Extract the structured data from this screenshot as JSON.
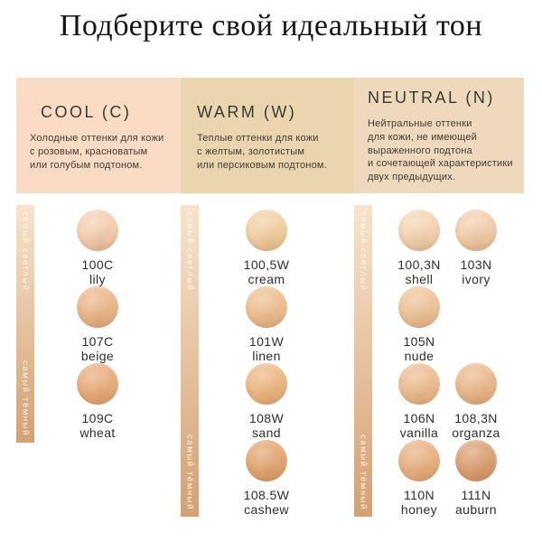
{
  "title": "Подберите свой идеальный тон",
  "scale": {
    "lightest_label": "самый светлый",
    "darkest_label": "самый тёмный",
    "gradient_top": "#f8e3cb",
    "gradient_bottom": "#d5a072"
  },
  "columns": [
    {
      "id": "cool",
      "title": "COOL (C)",
      "header_bg": "#f9dcc3",
      "description_lines": [
        "Холодные оттенки для кожи",
        "с розовым, красноватым",
        "или голубым подтоном."
      ],
      "swatches": [
        {
          "code": "100C",
          "name": "lily",
          "color": "#f4d0b2",
          "row": 0,
          "col": 0
        },
        {
          "code": "107C",
          "name": "beige",
          "color": "#ebb88c",
          "row": 1,
          "col": 0
        },
        {
          "code": "109C",
          "name": "wheat",
          "color": "#e9ae7e",
          "row": 2,
          "col": 0
        }
      ]
    },
    {
      "id": "warm",
      "title": "WARM (W)",
      "header_bg": "#ebd5ae",
      "description_lines": [
        "Теплые оттенки для кожи",
        "с желтым, золотистым",
        "или персиковым подтоном."
      ],
      "swatches": [
        {
          "code": "100,5W",
          "name": "cream",
          "color": "#f2d2a4",
          "row": 0,
          "col": 0
        },
        {
          "code": "101W",
          "name": "linen",
          "color": "#eec191",
          "row": 1,
          "col": 0
        },
        {
          "code": "108W",
          "name": "sand",
          "color": "#ecb984",
          "row": 2,
          "col": 0
        },
        {
          "code": "108.5W",
          "name": "cashew",
          "color": "#e3a876",
          "row": 3,
          "col": 0
        }
      ]
    },
    {
      "id": "neutral",
      "title": "NEUTRAL (N)",
      "header_bg": "#eed9bd",
      "description_lines": [
        "Нейтральные оттенки",
        "для кожи, не имеющей",
        "выраженного подтона",
        "и сочетающей характеристики",
        "двух предыдущих."
      ],
      "swatches": [
        {
          "code": "100,3N",
          "name": "shell",
          "color": "#f4d6b6",
          "row": 0,
          "col": 0
        },
        {
          "code": "103N",
          "name": "ivory",
          "color": "#f2cfad",
          "row": 0,
          "col": 1
        },
        {
          "code": "105N",
          "name": "nude",
          "color": "#eec59c",
          "row": 1,
          "col": 0
        },
        {
          "code": "106N",
          "name": "vanilla",
          "color": "#edbf93",
          "row": 2,
          "col": 0
        },
        {
          "code": "108,3N",
          "name": "organza",
          "color": "#ebba8d",
          "row": 2,
          "col": 1
        },
        {
          "code": "110N",
          "name": "honey",
          "color": "#e8b384",
          "row": 3,
          "col": 0
        },
        {
          "code": "111N",
          "name": "auburn",
          "color": "#dba175",
          "row": 3,
          "col": 1
        }
      ]
    }
  ]
}
